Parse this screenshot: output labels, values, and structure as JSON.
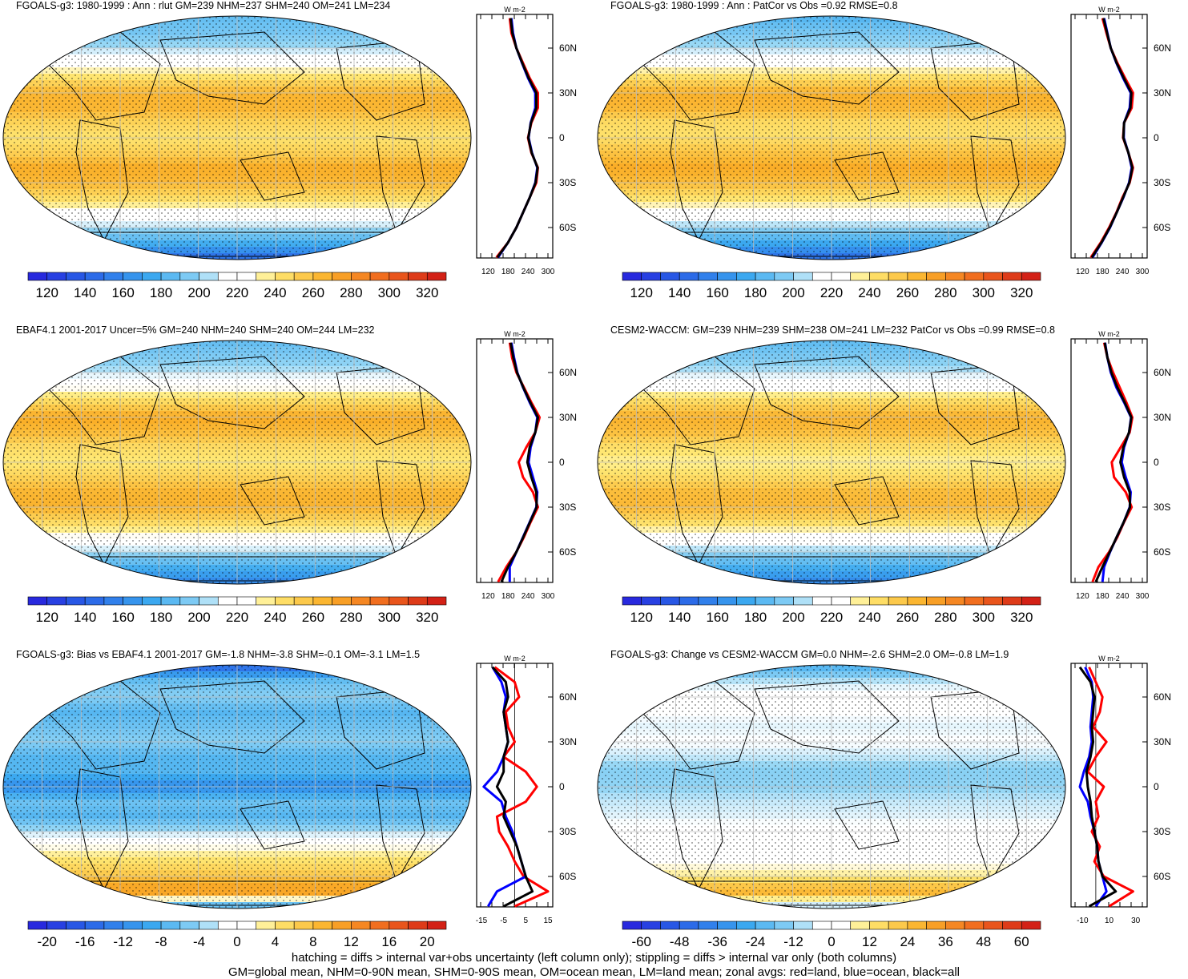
{
  "footer": {
    "line1": "hatching = diffs > internal var+obs uncertainty (left column only); stippling = diffs > internal var only (both columns)",
    "line2": "GM=global mean, NHM=0-90N mean, SHM=0-90S mean, OM=ocean mean, LM=land mean; zonal avgs: red=land, blue=ocean, black=all"
  },
  "chart_data": [
    {
      "type": "heatmap",
      "title": "FGOALS-g3: 1980-1999 : Ann : rlut GM=239 NHM=237 SHM=240 OM=241 LM=234",
      "colorbar": {
        "labels": [
          "120",
          "140",
          "160",
          "180",
          "200",
          "220",
          "240",
          "260",
          "280",
          "300",
          "320"
        ],
        "min": 110,
        "max": 330,
        "step": 10,
        "palette": "abs"
      },
      "zonal": {
        "unit": "W m-2",
        "xlim": [
          100,
          300
        ],
        "xticks": [
          "120",
          "180",
          "240",
          "300"
        ],
        "yticks": [
          "60N",
          "30N",
          "0",
          "30S",
          "60S"
        ],
        "lat": [
          80,
          70,
          60,
          50,
          40,
          30,
          20,
          10,
          0,
          -10,
          -20,
          -30,
          -40,
          -50,
          -60,
          -70,
          -80
        ],
        "series": [
          {
            "name": "land",
            "color": "#ff0000",
            "values": [
              185,
              190,
              205,
              225,
              245,
              270,
              270,
              250,
              240,
              250,
              270,
              265,
              245,
              225,
              205,
              180,
              145
            ]
          },
          {
            "name": "ocean",
            "color": "#0000ff",
            "values": [
              190,
              195,
              205,
              222,
              240,
              262,
              262,
              248,
              242,
              252,
              268,
              262,
              245,
              225,
              205,
              180,
              150
            ]
          },
          {
            "name": "all",
            "color": "#000000",
            "values": [
              188,
              193,
              205,
              223,
              242,
              265,
              265,
              249,
              241,
              251,
              269,
              263,
              245,
              225,
              205,
              180,
              148
            ]
          }
        ]
      }
    },
    {
      "type": "heatmap",
      "title": "FGOALS-g3: 1980-1999 : Ann : PatCor vs Obs =0.92 RMSE=0.8",
      "colorbar": {
        "labels": [
          "120",
          "140",
          "160",
          "180",
          "200",
          "220",
          "240",
          "260",
          "280",
          "300",
          "320"
        ],
        "min": 110,
        "max": 330,
        "step": 10,
        "palette": "abs"
      },
      "zonal": {
        "unit": "W m-2",
        "xlim": [
          100,
          300
        ],
        "xticks": [
          "120",
          "180",
          "240",
          "300"
        ],
        "yticks": [
          "60N",
          "30N",
          "0",
          "30S",
          "60S"
        ],
        "lat": [
          80,
          70,
          60,
          50,
          40,
          30,
          20,
          10,
          0,
          -10,
          -20,
          -30,
          -40,
          -50,
          -60,
          -70,
          -80
        ],
        "series": [
          {
            "name": "land",
            "color": "#ff0000",
            "values": [
              180,
              192,
              205,
              225,
              248,
              272,
              268,
              245,
              242,
              258,
              272,
              262,
              240,
              222,
              200,
              175,
              145
            ]
          },
          {
            "name": "ocean",
            "color": "#0000ff",
            "values": [
              185,
              195,
              205,
              222,
              242,
              265,
              262,
              245,
              244,
              258,
              268,
              260,
              243,
              223,
              203,
              178,
              150
            ]
          },
          {
            "name": "all",
            "color": "#000000",
            "values": [
              183,
              194,
              205,
              223,
              244,
              267,
              264,
              245,
              243,
              258,
              270,
              261,
              242,
              223,
              202,
              177,
              148
            ]
          }
        ]
      }
    },
    {
      "type": "heatmap",
      "title": "EBAF4.1 2001-2017 Uncer=5% GM=240 NHM=240 SHM=240 OM=244 LM=232",
      "colorbar": {
        "labels": [
          "120",
          "140",
          "160",
          "180",
          "200",
          "220",
          "240",
          "260",
          "280",
          "300",
          "320"
        ],
        "min": 110,
        "max": 330,
        "step": 10,
        "palette": "abs"
      },
      "zonal": {
        "unit": "W m-2",
        "xlim": [
          100,
          300
        ],
        "xticks": [
          "120",
          "180",
          "240",
          "300"
        ],
        "yticks": [
          "60N",
          "30N",
          "0",
          "30S",
          "60S"
        ],
        "lat": [
          80,
          70,
          60,
          50,
          40,
          30,
          20,
          10,
          0,
          -10,
          -20,
          -30,
          -40,
          -50,
          -60,
          -70,
          -80
        ],
        "series": [
          {
            "name": "land",
            "color": "#ff0000",
            "values": [
              185,
              192,
              205,
              228,
              250,
              275,
              262,
              235,
              212,
              225,
              255,
              270,
              248,
              228,
              205,
              175,
              150
            ]
          },
          {
            "name": "ocean",
            "color": "#0000ff",
            "values": [
              190,
              198,
              208,
              225,
              245,
              268,
              262,
              248,
              242,
              255,
              268,
              265,
              245,
              225,
              205,
              185,
              185
            ]
          },
          {
            "name": "all",
            "color": "#000000",
            "values": [
              188,
              196,
              207,
              226,
              247,
              270,
              262,
              245,
              238,
              250,
              265,
              266,
              246,
              226,
              205,
              180,
              160
            ]
          }
        ]
      }
    },
    {
      "type": "heatmap",
      "title": "CESM2-WACCM: GM=239 NHM=239 SHM=238 OM=241 LM=232 PatCor vs Obs =0.99 RMSE=0.8",
      "colorbar": {
        "labels": [
          "120",
          "140",
          "160",
          "180",
          "200",
          "220",
          "240",
          "260",
          "280",
          "300",
          "320"
        ],
        "min": 110,
        "max": 330,
        "step": 10,
        "palette": "abs"
      },
      "zonal": {
        "unit": "W m-2",
        "xlim": [
          100,
          300
        ],
        "xticks": [
          "120",
          "180",
          "240",
          "300"
        ],
        "yticks": [
          "60N",
          "30N",
          "0",
          "30S",
          "60S"
        ],
        "lat": [
          80,
          70,
          60,
          50,
          40,
          30,
          20,
          10,
          0,
          -10,
          -20,
          -30,
          -40,
          -50,
          -60,
          -70,
          -80
        ],
        "series": [
          {
            "name": "land",
            "color": "#ff0000",
            "values": [
              185,
              195,
              212,
              232,
              252,
              270,
              262,
              235,
              208,
              215,
              250,
              268,
              245,
              225,
              200,
              168,
              150
            ]
          },
          {
            "name": "ocean",
            "color": "#0000ff",
            "values": [
              188,
              195,
              205,
              222,
              245,
              266,
              260,
              245,
              238,
              250,
              265,
              262,
              244,
              223,
              203,
              185,
              180
            ]
          },
          {
            "name": "all",
            "color": "#000000",
            "values": [
              187,
              195,
              207,
              225,
              247,
              267,
              260,
              243,
              234,
              245,
              262,
              263,
              244,
              223,
              202,
              180,
              160
            ]
          }
        ]
      }
    },
    {
      "type": "heatmap",
      "title": "FGOALS-g3: Bias vs EBAF4.1 2001-2017 GM=-1.8 NHM=-3.8 SHM=-0.1 OM=-3.1 LM=1.5",
      "colorbar": {
        "labels": [
          "-20",
          "-16",
          "-12",
          "-8",
          "-4",
          "0",
          "4",
          "8",
          "12",
          "16",
          "20"
        ],
        "min": -22,
        "max": 22,
        "step": 2,
        "palette": "diff"
      },
      "zonal": {
        "unit": "W m-2",
        "xlim": [
          -15,
          15
        ],
        "xticks": [
          "-15",
          "-5",
          "5",
          "15"
        ],
        "yticks": [
          "60N",
          "30N",
          "0",
          "30S",
          "60S"
        ],
        "lat": [
          80,
          70,
          60,
          50,
          40,
          30,
          20,
          10,
          0,
          -10,
          -20,
          -30,
          -40,
          -50,
          -60,
          -70,
          -80
        ],
        "series": [
          {
            "name": "land",
            "color": "#ff0000",
            "values": [
              -9,
              0,
              2,
              -4,
              -3,
              0,
              -5,
              5,
              10,
              5,
              -8,
              -7,
              -3,
              0,
              4,
              15,
              0
            ]
          },
          {
            "name": "ocean",
            "color": "#0000ff",
            "values": [
              -10,
              -6,
              -4,
              -5,
              -4,
              -3,
              -5,
              -8,
              -14,
              -6,
              -4,
              -1,
              1,
              3,
              5,
              -8,
              -12
            ]
          },
          {
            "name": "all",
            "color": "#000000",
            "values": [
              -10,
              -4,
              -3,
              -5,
              -4,
              -3,
              -5,
              -5,
              -8,
              -4,
              -5,
              -2,
              1,
              3,
              5,
              8,
              -5
            ]
          }
        ]
      }
    },
    {
      "type": "heatmap",
      "title": "FGOALS-g3: Change vs CESM2-WACCM GM=0.0 NHM=-2.6 SHM=2.0 OM=-0.8 LM=1.9",
      "colorbar": {
        "labels": [
          "-60",
          "-48",
          "-36",
          "-24",
          "-12",
          "0",
          "12",
          "24",
          "36",
          "48",
          "60"
        ],
        "min": -66,
        "max": 66,
        "step": 6,
        "palette": "diff"
      },
      "zonal": {
        "unit": "W m-2",
        "xlim": [
          -15,
          35
        ],
        "xticks": [
          "-10",
          "10",
          "30"
        ],
        "yticks": [
          "60N",
          "30N",
          "0",
          "30S",
          "60S"
        ],
        "lat": [
          80,
          70,
          60,
          50,
          40,
          30,
          20,
          10,
          0,
          -10,
          -20,
          -30,
          -40,
          -50,
          -60,
          -70,
          -80
        ],
        "series": [
          {
            "name": "land",
            "color": "#ff0000",
            "values": [
              -5,
              0,
              5,
              3,
              -2,
              8,
              0,
              -6,
              6,
              0,
              2,
              -3,
              3,
              -1,
              6,
              28,
              10
            ]
          },
          {
            "name": "ocean",
            "color": "#0000ff",
            "values": [
              -8,
              -3,
              -2,
              -3,
              -4,
              -3,
              -5,
              -9,
              -12,
              -6,
              -4,
              -1,
              1,
              2,
              5,
              8,
              0
            ]
          },
          {
            "name": "all",
            "color": "#000000",
            "values": [
              -12,
              -4,
              -1,
              -2,
              -3,
              -2,
              -4,
              -7,
              -6,
              -4,
              -3,
              -1,
              1,
              2,
              5,
              15,
              -5
            ]
          }
        ]
      }
    }
  ]
}
